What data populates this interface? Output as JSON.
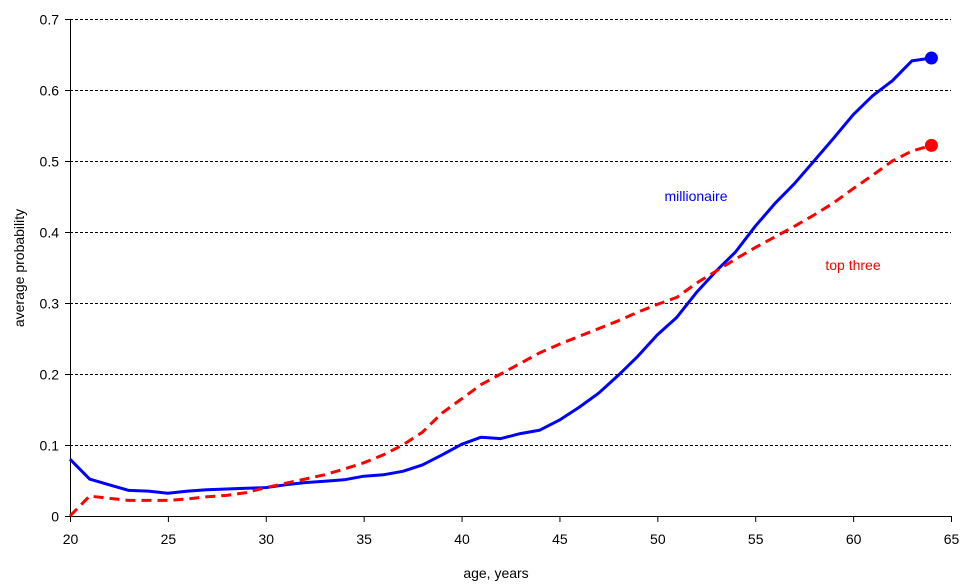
{
  "chart_data": {
    "type": "line",
    "title": "",
    "xlabel": "age, years",
    "ylabel": "average probability",
    "xlim": [
      20,
      65
    ],
    "ylim": [
      0,
      0.7
    ],
    "xticks": [
      20,
      25,
      30,
      35,
      40,
      45,
      50,
      55,
      60,
      65
    ],
    "yticks": [
      0,
      0.1,
      0.2,
      0.3,
      0.4,
      0.5,
      0.6,
      0.7
    ],
    "xtick_labels": [
      "20",
      "25",
      "30",
      "35",
      "40",
      "45",
      "50",
      "55",
      "60",
      "65"
    ],
    "ytick_labels": [
      "0",
      "0.1",
      "0.2",
      "0.3",
      "0.4",
      "0.5",
      "0.6",
      "0.7"
    ],
    "grid": "horizontal dashed",
    "x": [
      20,
      21,
      22,
      23,
      24,
      25,
      26,
      27,
      28,
      29,
      30,
      31,
      32,
      33,
      34,
      35,
      36,
      37,
      38,
      39,
      40,
      41,
      42,
      43,
      44,
      45,
      46,
      47,
      48,
      49,
      50,
      51,
      52,
      53,
      54,
      55,
      56,
      57,
      58,
      59,
      60,
      61,
      62,
      63,
      64
    ],
    "series": [
      {
        "name": "millionaire",
        "color": "#0000ff",
        "style": "solid",
        "end_marker": true,
        "values": [
          0.08,
          0.052,
          0.044,
          0.036,
          0.035,
          0.032,
          0.035,
          0.037,
          0.038,
          0.039,
          0.04,
          0.044,
          0.047,
          0.049,
          0.051,
          0.056,
          0.058,
          0.063,
          0.072,
          0.086,
          0.101,
          0.111,
          0.109,
          0.116,
          0.121,
          0.135,
          0.153,
          0.173,
          0.198,
          0.225,
          0.255,
          0.28,
          0.315,
          0.345,
          0.372,
          0.408,
          0.44,
          0.468,
          0.5,
          0.532,
          0.565,
          0.592,
          0.613,
          0.641,
          0.645
        ]
      },
      {
        "name": "top three",
        "color": "#ff0000",
        "style": "dashed",
        "end_marker": true,
        "values": [
          0.0,
          0.028,
          0.025,
          0.022,
          0.022,
          0.022,
          0.024,
          0.027,
          0.029,
          0.033,
          0.04,
          0.046,
          0.052,
          0.058,
          0.066,
          0.075,
          0.086,
          0.1,
          0.118,
          0.145,
          0.165,
          0.185,
          0.2,
          0.215,
          0.23,
          0.242,
          0.253,
          0.264,
          0.275,
          0.287,
          0.298,
          0.308,
          0.328,
          0.345,
          0.362,
          0.378,
          0.393,
          0.408,
          0.424,
          0.441,
          0.461,
          0.48,
          0.5,
          0.514,
          0.522
        ]
      }
    ]
  }
}
